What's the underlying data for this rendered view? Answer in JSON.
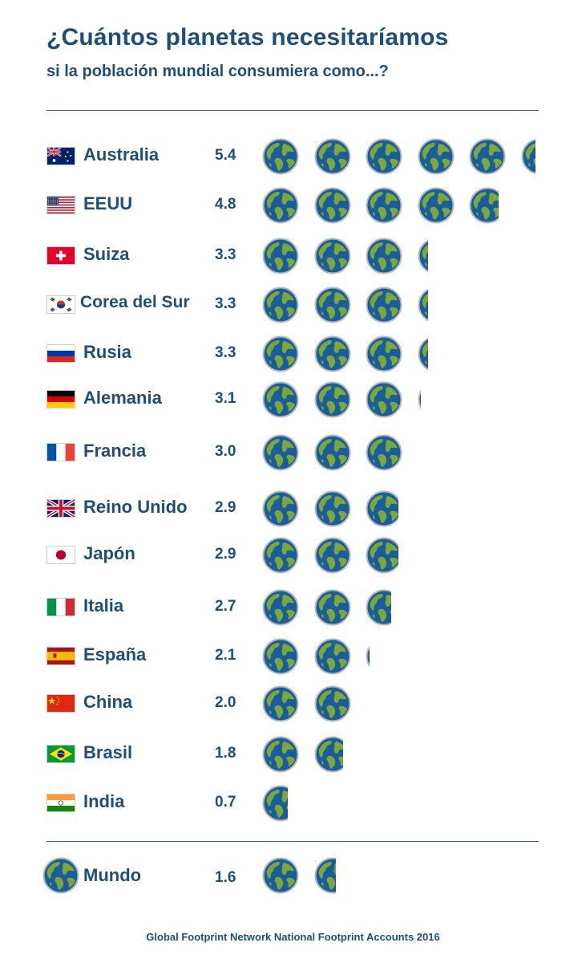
{
  "header": {
    "title": "¿Cuántos planetas necesitaríamos",
    "subtitle": "si la población mundial consumiera como...?"
  },
  "chart_data": {
    "type": "bar",
    "title": "¿Cuántos planetas necesitaríamos",
    "subtitle": "si la población mundial consumiera como...?",
    "unit_icon": "globe-icon",
    "categories": [
      "Australia",
      "EEUU",
      "Suiza",
      "Corea del Sur",
      "Rusia",
      "Alemania",
      "Francia",
      "Reino Unido",
      "Japón",
      "Italia",
      "España",
      "China",
      "Brasil",
      "India"
    ],
    "values": [
      5.4,
      4.8,
      3.3,
      3.3,
      3.3,
      3.1,
      3.0,
      2.9,
      2.9,
      2.7,
      2.1,
      2.0,
      1.8,
      0.7
    ],
    "value_labels": [
      "5.4",
      "4.8",
      "3.3",
      "3.3",
      "3.3",
      "3.1",
      "3.0",
      "2.9",
      "2.9",
      "2.7",
      "2.1",
      "2.0",
      "1.8",
      "0.7"
    ],
    "flags": [
      "australia-flag-icon",
      "usa-flag-icon",
      "switzerland-flag-icon",
      "south-korea-flag-icon",
      "russia-flag-icon",
      "germany-flag-icon",
      "france-flag-icon",
      "uk-flag-icon",
      "japan-flag-icon",
      "italy-flag-icon",
      "spain-flag-icon",
      "china-flag-icon",
      "brazil-flag-icon",
      "india-flag-icon"
    ],
    "world": {
      "label": "Mundo",
      "value": 1.6,
      "value_label": "1.6",
      "icon": "globe-icon"
    }
  },
  "colors": {
    "text": "#1f4e79",
    "ocean": "#1a5d9c",
    "land": "#7aa83b",
    "globe_border": "#b8b8b8"
  },
  "footer": {
    "source": "Global Footprint Network National Footprint Accounts 2016"
  }
}
